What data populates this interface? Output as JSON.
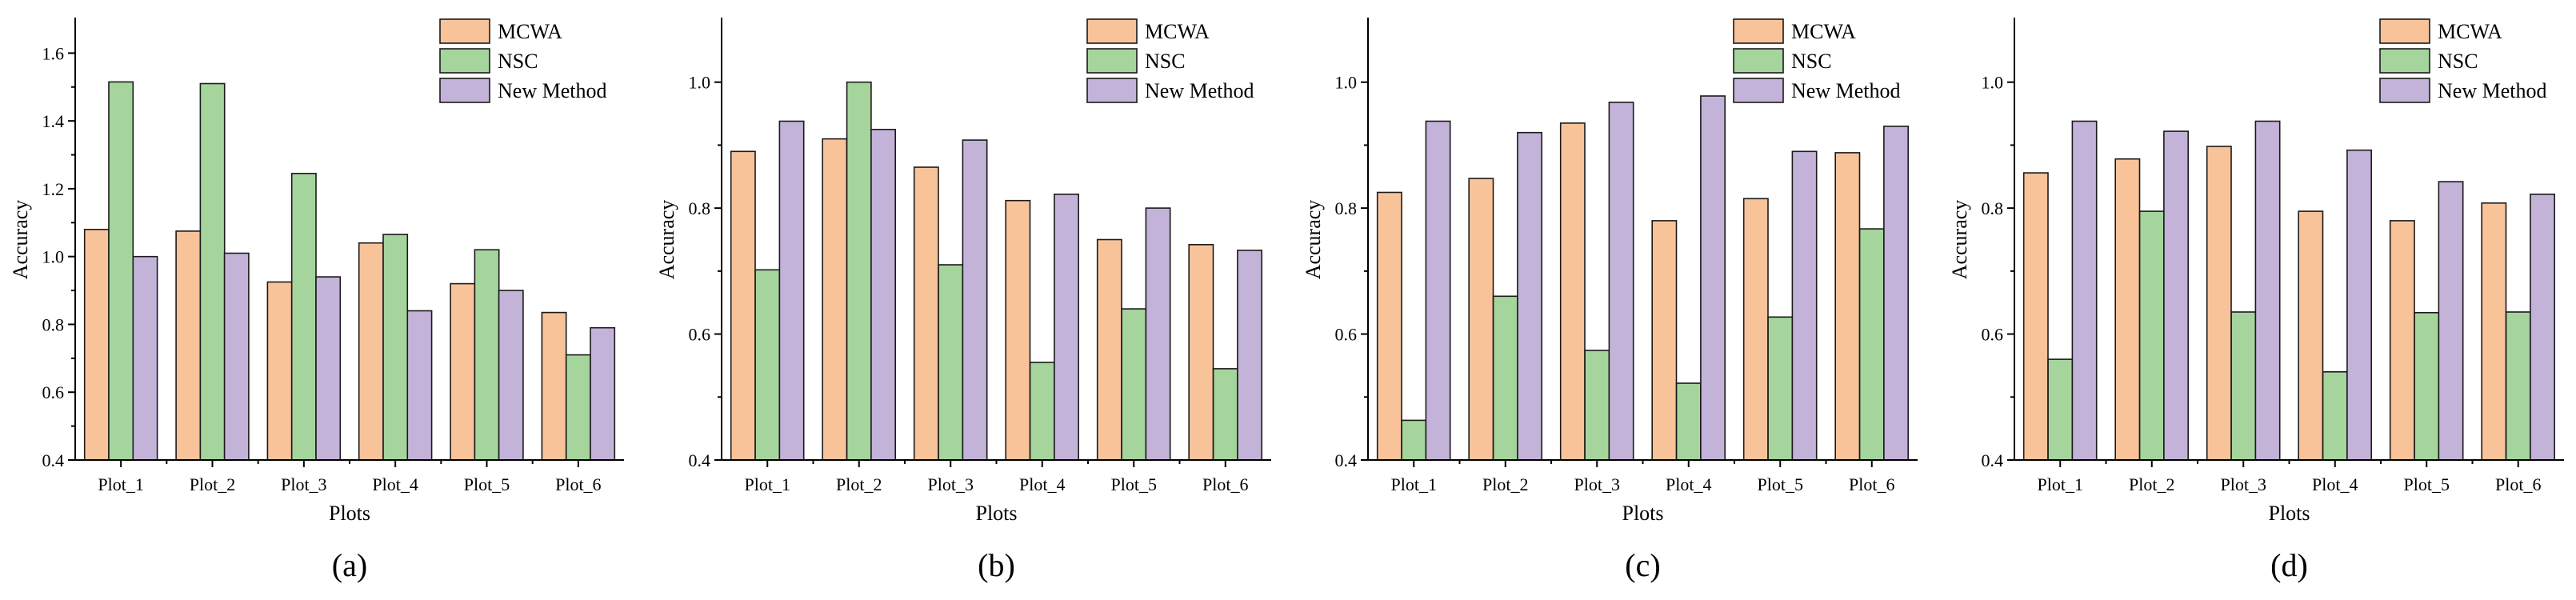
{
  "colors": {
    "MCWA": "#f9c39a",
    "NSC": "#a5d59c",
    "New Method": "#c3b3d9"
  },
  "chart_data": [
    {
      "type": "bar",
      "panel_label": "(a)",
      "xlabel": "Plots",
      "ylabel": "Accuracy",
      "ylim": [
        0.4,
        1.7
      ],
      "yticks": [
        "0.4",
        "0.6",
        "0.8",
        "1.0",
        "1.2",
        "1.4",
        "1.6"
      ],
      "categories": [
        "Plot_1",
        "Plot_2",
        "Plot_3",
        "Plot_4",
        "Plot_5",
        "Plot_6"
      ],
      "legend_position": "top-right",
      "series": [
        {
          "name": "MCWA",
          "values": [
            1.08,
            1.075,
            0.925,
            1.04,
            0.92,
            0.835
          ]
        },
        {
          "name": "NSC",
          "values": [
            1.515,
            1.51,
            1.245,
            1.065,
            1.02,
            0.71
          ]
        },
        {
          "name": "New Method",
          "values": [
            1.0,
            1.01,
            0.94,
            0.84,
            0.9,
            0.79
          ]
        }
      ]
    },
    {
      "type": "bar",
      "panel_label": "(b)",
      "xlabel": "Plots",
      "ylabel": "Accuracy",
      "ylim": [
        0.4,
        1.1
      ],
      "yticks": [
        "0.4",
        "0.6",
        "0.8",
        "1.0"
      ],
      "categories": [
        "Plot_1",
        "Plot_2",
        "Plot_3",
        "Plot_4",
        "Plot_5",
        "Plot_6"
      ],
      "legend_position": "top-right",
      "series": [
        {
          "name": "MCWA",
          "values": [
            0.89,
            0.91,
            0.865,
            0.812,
            0.75,
            0.742
          ]
        },
        {
          "name": "NSC",
          "values": [
            0.702,
            1.0,
            0.71,
            0.555,
            0.64,
            0.545
          ]
        },
        {
          "name": "New Method",
          "values": [
            0.938,
            0.925,
            0.908,
            0.822,
            0.8,
            0.733
          ]
        }
      ]
    },
    {
      "type": "bar",
      "panel_label": "(c)",
      "xlabel": "Plots",
      "ylabel": "Accuracy",
      "ylim": [
        0.4,
        1.1
      ],
      "yticks": [
        "0.4",
        "0.6",
        "0.8",
        "1.0"
      ],
      "categories": [
        "Plot_1",
        "Plot_2",
        "Plot_3",
        "Plot_4",
        "Plot_5",
        "Plot_6"
      ],
      "legend_position": "top-right",
      "series": [
        {
          "name": "MCWA",
          "values": [
            0.825,
            0.847,
            0.935,
            0.78,
            0.815,
            0.888
          ]
        },
        {
          "name": "NSC",
          "values": [
            0.463,
            0.66,
            0.574,
            0.522,
            0.627,
            0.767
          ]
        },
        {
          "name": "New Method",
          "values": [
            0.938,
            0.92,
            0.968,
            0.978,
            0.89,
            0.93
          ]
        }
      ]
    },
    {
      "type": "bar",
      "panel_label": "(d)",
      "xlabel": "Plots",
      "ylabel": "Accuracy",
      "ylim": [
        0.4,
        1.1
      ],
      "yticks": [
        "0.4",
        "0.6",
        "0.8",
        "1.0"
      ],
      "categories": [
        "Plot_1",
        "Plot_2",
        "Plot_3",
        "Plot_4",
        "Plot_5",
        "Plot_6"
      ],
      "legend_position": "top-right",
      "series": [
        {
          "name": "MCWA",
          "values": [
            0.856,
            0.878,
            0.898,
            0.795,
            0.78,
            0.808
          ]
        },
        {
          "name": "NSC",
          "values": [
            0.56,
            0.795,
            0.635,
            0.54,
            0.634,
            0.635
          ]
        },
        {
          "name": "New Method",
          "values": [
            0.938,
            0.922,
            0.938,
            0.892,
            0.842,
            0.822
          ]
        }
      ]
    }
  ]
}
